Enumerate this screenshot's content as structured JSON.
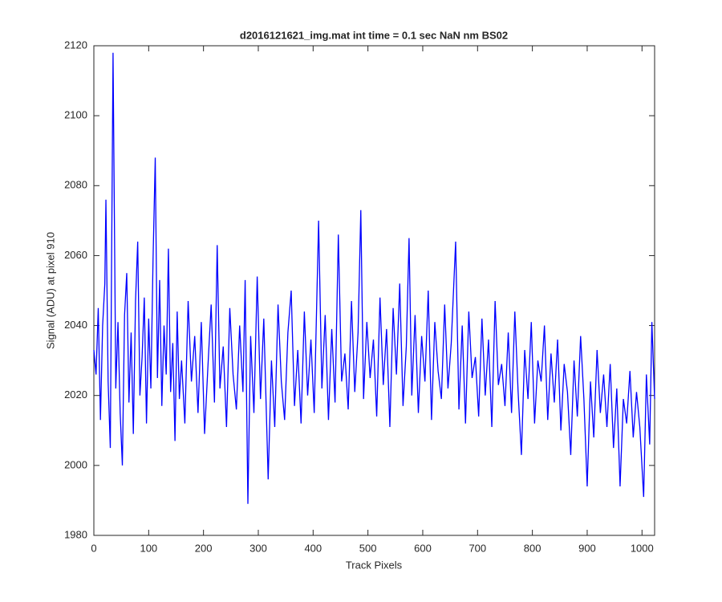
{
  "chart_data": {
    "type": "line",
    "title": "d2016121621_img.mat int time = 0.1 sec  NaN nm BS02",
    "x_label": "Track Pixels",
    "y_label": "Signal (ADU) at pixel 910",
    "xlim": [
      0,
      1023
    ],
    "ylim": [
      1980,
      2120
    ],
    "xticks": [
      0,
      100,
      200,
      300,
      400,
      500,
      600,
      700,
      800,
      900,
      1000
    ],
    "yticks": [
      1980,
      2000,
      2020,
      2040,
      2060,
      2080,
      2100,
      2120
    ],
    "grid": false,
    "x": [
      0,
      4,
      8,
      12,
      16,
      20,
      22,
      26,
      30,
      35,
      40,
      44,
      48,
      52,
      56,
      60,
      64,
      68,
      72,
      76,
      80,
      84,
      88,
      92,
      96,
      100,
      104,
      108,
      112,
      116,
      120,
      124,
      128,
      132,
      136,
      140,
      144,
      148,
      152,
      156,
      160,
      166,
      172,
      178,
      184,
      190,
      196,
      202,
      208,
      214,
      220,
      225,
      230,
      236,
      242,
      248,
      254,
      260,
      266,
      272,
      276,
      281,
      286,
      292,
      298,
      304,
      310,
      318,
      324,
      330,
      336,
      342,
      348,
      354,
      360,
      366,
      372,
      378,
      384,
      390,
      396,
      402,
      410,
      416,
      422,
      428,
      434,
      440,
      446,
      452,
      458,
      464,
      470,
      476,
      482,
      487,
      492,
      498,
      504,
      510,
      516,
      522,
      528,
      534,
      540,
      546,
      552,
      558,
      564,
      570,
      575,
      580,
      586,
      592,
      598,
      604,
      610,
      616,
      622,
      628,
      634,
      640,
      646,
      652,
      660,
      666,
      672,
      678,
      684,
      690,
      696,
      702,
      708,
      714,
      720,
      726,
      732,
      738,
      744,
      750,
      756,
      762,
      768,
      774,
      780,
      786,
      792,
      798,
      804,
      810,
      816,
      822,
      828,
      834,
      840,
      846,
      852,
      858,
      864,
      870,
      876,
      882,
      888,
      894,
      900,
      906,
      912,
      918,
      924,
      930,
      936,
      942,
      948,
      954,
      960,
      966,
      972,
      978,
      984,
      990,
      996,
      1003,
      1008,
      1014,
      1018,
      1023
    ],
    "series": [
      {
        "color": "#0000ff",
        "values": [
          2033,
          2026,
          2045,
          2013,
          2040,
          2052,
          2076,
          2024,
          2005,
          2118,
          2022,
          2041,
          2015,
          2000,
          2043,
          2055,
          2018,
          2038,
          2009,
          2047,
          2064,
          2020,
          2031,
          2048,
          2012,
          2042,
          2022,
          2059,
          2088,
          2025,
          2053,
          2017,
          2040,
          2026,
          2062,
          2021,
          2035,
          2007,
          2044,
          2019,
          2030,
          2012,
          2047,
          2024,
          2037,
          2015,
          2041,
          2009,
          2028,
          2046,
          2018,
          2063,
          2022,
          2034,
          2011,
          2045,
          2026,
          2016,
          2040,
          2021,
          2053,
          1989,
          2037,
          2015,
          2054,
          2019,
          2042,
          1996,
          2030,
          2011,
          2046,
          2024,
          2013,
          2038,
          2050,
          2017,
          2033,
          2012,
          2044,
          2020,
          2036,
          2015,
          2070,
          2022,
          2043,
          2013,
          2039,
          2018,
          2066,
          2024,
          2032,
          2016,
          2047,
          2021,
          2038,
          2073,
          2019,
          2041,
          2025,
          2036,
          2014,
          2048,
          2023,
          2039,
          2011,
          2045,
          2026,
          2052,
          2017,
          2034,
          2065,
          2020,
          2043,
          2015,
          2037,
          2024,
          2050,
          2013,
          2041,
          2027,
          2019,
          2046,
          2022,
          2035,
          2064,
          2016,
          2040,
          2012,
          2044,
          2025,
          2031,
          2014,
          2042,
          2020,
          2036,
          2011,
          2047,
          2023,
          2029,
          2017,
          2038,
          2015,
          2044,
          2021,
          2003,
          2033,
          2019,
          2041,
          2012,
          2030,
          2024,
          2040,
          2013,
          2032,
          2018,
          2036,
          2010,
          2029,
          2021,
          2003,
          2030,
          2014,
          2037,
          2019,
          1994,
          2024,
          2008,
          2033,
          2015,
          2026,
          2011,
          2029,
          2005,
          2022,
          1994,
          2019,
          2012,
          2027,
          2008,
          2021,
          2011,
          1991,
          2026,
          2006,
          2041,
          2019
        ]
      }
    ]
  }
}
